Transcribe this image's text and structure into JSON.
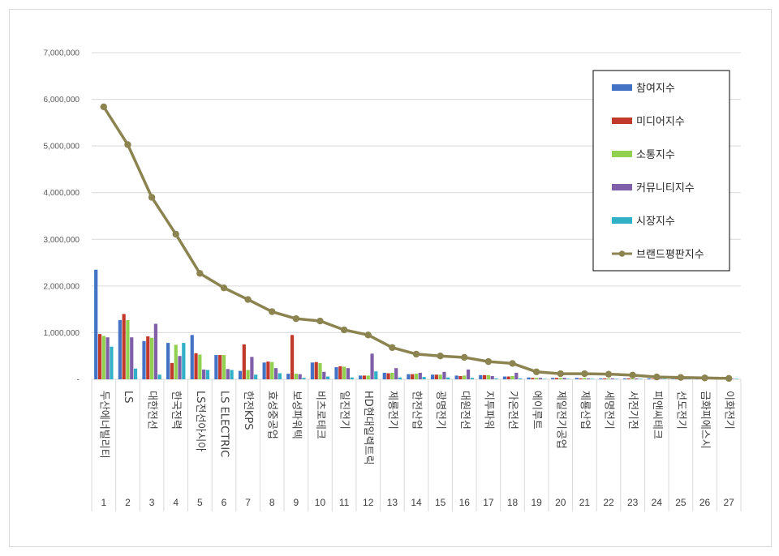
{
  "chart_data": {
    "type": "bar",
    "title": "",
    "xlabel": "",
    "ylabel": "",
    "ylim": [
      0,
      7000000
    ],
    "yticks": [
      "-",
      "1,000,000",
      "2,000,000",
      "3,000,000",
      "4,000,000",
      "5,000,000",
      "6,000,000",
      "7,000,000"
    ],
    "grid": true,
    "legend_position": "top-right",
    "categories": [
      "두산에너빌리티",
      "LS",
      "대한전선",
      "한국전력",
      "LS전선아시아",
      "LS ELECTRIC",
      "한전KPS",
      "효성중공업",
      "보성파워텍",
      "비츠로테크",
      "일진전기",
      "HD현대일렉트릭",
      "제룡전기",
      "한전산업",
      "광명전기",
      "대원전선",
      "지투파워",
      "가온전선",
      "에이루트",
      "제일전기공업",
      "제룡산업",
      "세명전기",
      "서전기전",
      "피앤씨테크",
      "선도전기",
      "금화피에스시",
      "이화전기"
    ],
    "ranks": [
      "1",
      "2",
      "3",
      "4",
      "5",
      "6",
      "7",
      "8",
      "9",
      "10",
      "11",
      "12",
      "13",
      "14",
      "15",
      "16",
      "17",
      "18",
      "19",
      "20",
      "21",
      "22",
      "23",
      "24",
      "25",
      "26",
      "27"
    ],
    "series": [
      {
        "name": "참여지수",
        "color": "#4472c4",
        "kind": "bar",
        "values": [
          2350000,
          1270000,
          820000,
          780000,
          950000,
          520000,
          180000,
          360000,
          120000,
          360000,
          260000,
          80000,
          140000,
          110000,
          100000,
          80000,
          90000,
          60000,
          40000,
          30000,
          30000,
          20000,
          20000,
          20000,
          10000,
          10000,
          10000
        ]
      },
      {
        "name": "미디어지수",
        "color": "#c0392b",
        "kind": "bar",
        "values": [
          970000,
          1400000,
          920000,
          350000,
          560000,
          520000,
          750000,
          380000,
          950000,
          370000,
          280000,
          80000,
          130000,
          110000,
          100000,
          70000,
          90000,
          60000,
          30000,
          30000,
          20000,
          20000,
          20000,
          10000,
          10000,
          10000,
          10000
        ]
      },
      {
        "name": "소통지수",
        "color": "#92d050",
        "kind": "bar",
        "values": [
          930000,
          1270000,
          890000,
          740000,
          530000,
          520000,
          200000,
          370000,
          120000,
          350000,
          270000,
          80000,
          140000,
          120000,
          100000,
          80000,
          90000,
          70000,
          30000,
          30000,
          30000,
          20000,
          20000,
          20000,
          10000,
          10000,
          10000
        ]
      },
      {
        "name": "커뮤니티지수",
        "color": "#7f5fa8",
        "kind": "bar",
        "values": [
          900000,
          900000,
          1190000,
          500000,
          210000,
          220000,
          480000,
          240000,
          110000,
          160000,
          240000,
          550000,
          240000,
          140000,
          160000,
          210000,
          70000,
          140000,
          30000,
          30000,
          20000,
          20000,
          20000,
          10000,
          10000,
          10000,
          10000
        ]
      },
      {
        "name": "시장지수",
        "color": "#31b0c8",
        "kind": "bar",
        "values": [
          700000,
          230000,
          100000,
          780000,
          200000,
          200000,
          100000,
          130000,
          30000,
          60000,
          40000,
          170000,
          40000,
          50000,
          40000,
          30000,
          20000,
          20000,
          10000,
          10000,
          10000,
          10000,
          10000,
          10000,
          10000,
          10000,
          10000
        ]
      },
      {
        "name": "브랜드평판지수",
        "color": "#8c8450",
        "kind": "line",
        "values": [
          5840000,
          5030000,
          3900000,
          3110000,
          2270000,
          1960000,
          1710000,
          1450000,
          1300000,
          1250000,
          1060000,
          950000,
          680000,
          540000,
          500000,
          470000,
          380000,
          340000,
          160000,
          120000,
          120000,
          110000,
          90000,
          50000,
          40000,
          30000,
          20000
        ]
      }
    ]
  }
}
